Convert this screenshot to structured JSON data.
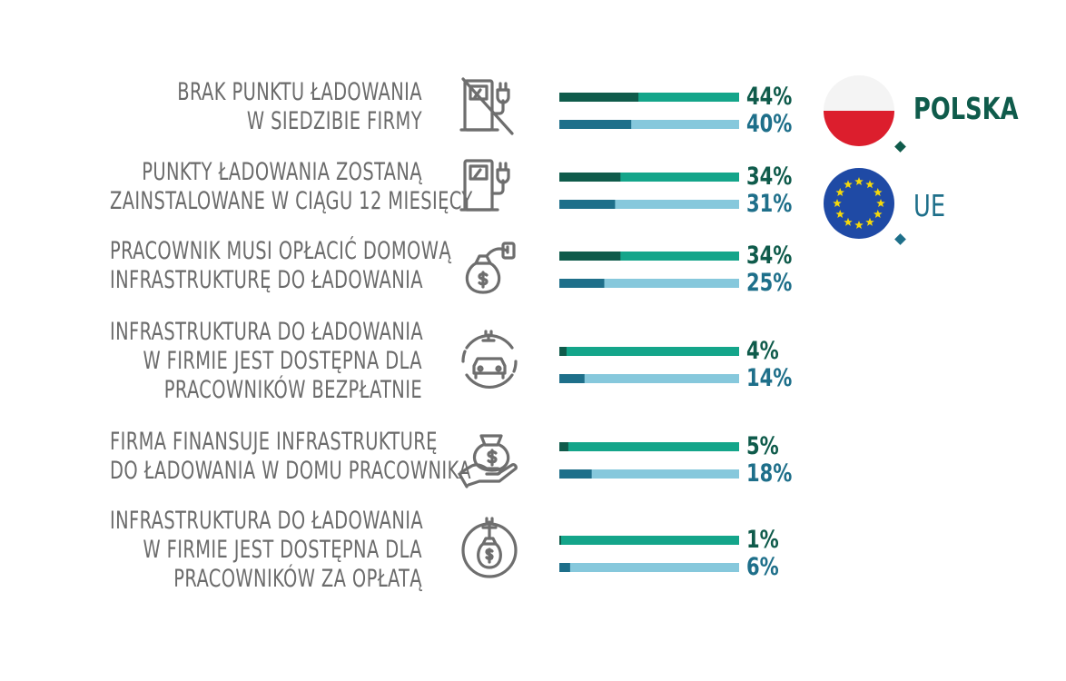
{
  "legend": [
    {
      "key": "pl",
      "label": "POLSKA",
      "icon": "poland-flag-icon"
    },
    {
      "key": "eu",
      "label": "UE",
      "icon": "eu-flag-icon"
    }
  ],
  "colors": {
    "pl_fill": "#0f5b4b",
    "pl_track": "#14a58a",
    "eu_fill": "#1e6f8a",
    "eu_track": "#86c8dc",
    "text_gray": "#6b6b6b",
    "icon_gray": "#6e6e6e"
  },
  "chart_data": {
    "type": "bar",
    "orientation": "horizontal",
    "xlim": [
      0,
      100
    ],
    "categories": [
      {
        "lines": [
          "BRAK PUNKTU ŁADOWANIA",
          "W SIEDZIBIE FIRMY"
        ],
        "icon": "no-charging-station-icon"
      },
      {
        "lines": [
          "PUNKTY ŁADOWANIA ZOSTANĄ",
          "ZAINSTALOWANE W CIĄGU 12 MIESIĘCY"
        ],
        "icon": "charging-station-icon"
      },
      {
        "lines": [
          "PRACOWNIK MUSI OPŁACIĆ DOMOWĄ",
          "INFRASTRUKTURĘ DO ŁADOWANIA"
        ],
        "icon": "money-bag-charger-icon"
      },
      {
        "lines": [
          "INFRASTRUKTURA DO ŁADOWANIA",
          "W FIRMIE JEST DOSTĘPNA DLA",
          "PRACOWNIKÓW BEZPŁATNIE"
        ],
        "icon": "car-charging-icon"
      },
      {
        "lines": [
          "FIRMA FINANSUJE INFRASTRUKTURĘ",
          "DO ŁADOWANIA W DOMU PRACOWNIKA"
        ],
        "icon": "hand-money-bag-icon"
      },
      {
        "lines": [
          "INFRASTRUKTURA DO ŁADOWANIA",
          "W FIRMIE JEST DOSTĘPNA DLA",
          "PRACOWNIKÓW ZA OPŁATĄ"
        ],
        "icon": "paid-charging-icon"
      }
    ],
    "series": [
      {
        "name": "POLSKA",
        "values": [
          44,
          34,
          34,
          4,
          5,
          1
        ],
        "labels": [
          "44%",
          "34%",
          "34%",
          "4%",
          "5%",
          "1%"
        ]
      },
      {
        "name": "UE",
        "values": [
          40,
          31,
          25,
          14,
          18,
          6
        ],
        "labels": [
          "40%",
          "31%",
          "25%",
          "14%",
          "18%",
          "6%"
        ]
      }
    ]
  }
}
